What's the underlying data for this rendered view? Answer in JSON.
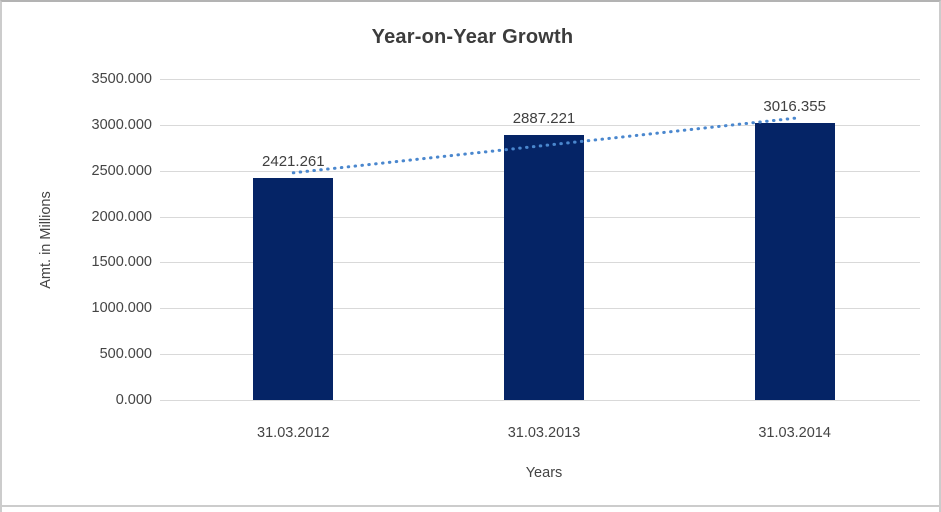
{
  "chart_data": {
    "type": "bar",
    "title": "Year-on-Year Growth",
    "xlabel": "Years",
    "ylabel": "Amt. in Millions",
    "categories": [
      "31.03.2012",
      "31.03.2013",
      "31.03.2014"
    ],
    "values": [
      2421.261,
      2887.221,
      3016.355
    ],
    "data_labels": [
      "2421.261",
      "2887.221",
      "3016.355"
    ],
    "ylim": [
      0,
      3500
    ],
    "ytick_interval": 500,
    "ytick_labels_top_to_bottom": [
      "3500.000",
      "3000.000",
      "2500.000",
      "2000.000",
      "1500.000",
      "1000.000",
      "500.000",
      "0.000"
    ],
    "grid": true,
    "legend": "none",
    "trendline": {
      "style": "dotted-linear",
      "endpoint_values": [
        2477.399,
        3072.493
      ]
    },
    "colors": {
      "bar": "#052466",
      "trendline": "#4a87ce",
      "gridline": "#d9d9d9",
      "title_text": "#3c3c3c",
      "axis_text": "#444444"
    }
  }
}
